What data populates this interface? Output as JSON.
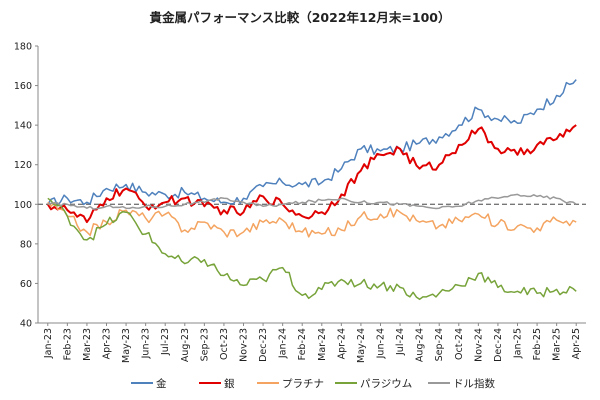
{
  "chart_data": {
    "type": "line",
    "title": "貴金属パフォーマンス比較（2022年12月末=100）",
    "xlabel": "",
    "ylabel": "",
    "ylim": [
      40,
      180
    ],
    "yticks": [
      40,
      60,
      80,
      100,
      120,
      140,
      160,
      180
    ],
    "x": [
      "Jan-23",
      "Feb-23",
      "Mar-23",
      "Apr-23",
      "May-23",
      "Jun-23",
      "Jul-23",
      "Aug-23",
      "Sep-23",
      "Oct-23",
      "Nov-23",
      "Dec-23",
      "Jan-24",
      "Feb-24",
      "Mar-24",
      "Apr-24",
      "May-24",
      "Jun-24",
      "Jul-24",
      "Aug-24",
      "Sep-24",
      "Oct-24",
      "Nov-24",
      "Dec-24",
      "Jan-25",
      "Feb-25",
      "Mar-25",
      "Apr-25"
    ],
    "reference_line": 100,
    "legend_position": "bottom",
    "grid": false,
    "series": [
      {
        "name": "金",
        "color": "#4f81bd",
        "values": [
          100,
          103,
          101,
          108,
          110,
          106,
          105,
          106,
          103,
          101,
          103,
          109,
          111,
          110,
          111,
          118,
          128,
          127,
          128,
          131,
          134,
          140,
          148,
          143,
          141,
          148,
          155,
          163
        ]
      },
      {
        "name": "銀",
        "color": "#e00000",
        "values": [
          100,
          97,
          91,
          103,
          108,
          99,
          101,
          103,
          99,
          97,
          96,
          104,
          100,
          94,
          96,
          105,
          117,
          125,
          128,
          118,
          120,
          130,
          138,
          128,
          125,
          130,
          133,
          140
        ]
      },
      {
        "name": "プラチナ",
        "color": "#f4a460",
        "values": [
          101,
          94,
          86,
          91,
          97,
          93,
          95,
          87,
          91,
          86,
          86,
          91,
          92,
          86,
          85,
          87,
          94,
          95,
          96,
          91,
          89,
          92,
          95,
          90,
          89,
          88,
          92,
          91
        ]
      },
      {
        "name": "パラジウム",
        "color": "#77a33a",
        "values": [
          103,
          94,
          82,
          90,
          96,
          85,
          75,
          70,
          72,
          64,
          59,
          62,
          68,
          54,
          57,
          62,
          60,
          59,
          58,
          52,
          55,
          59,
          65,
          58,
          56,
          55,
          57,
          56
        ]
      },
      {
        "name": "ドル指数",
        "color": "#999999",
        "values": [
          100,
          100,
          98,
          99,
          98,
          99,
          99,
          100,
          101,
          103,
          101,
          99,
          100,
          101,
          102,
          103,
          101,
          101,
          100,
          99,
          98,
          99,
          102,
          103,
          105,
          104,
          103,
          100
        ]
      }
    ]
  }
}
